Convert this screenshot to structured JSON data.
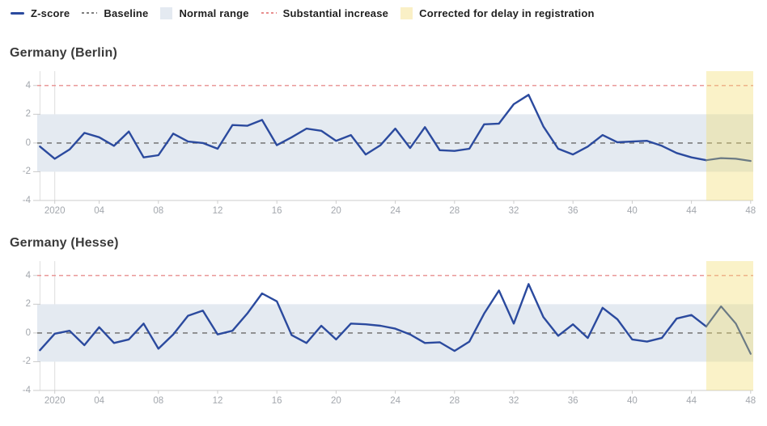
{
  "legend": {
    "items": [
      {
        "label": "Z-score",
        "marker": "solid-line",
        "color": "#2b4a9e"
      },
      {
        "label": "Baseline",
        "marker": "dashed-line",
        "color": "#7d7d7d"
      },
      {
        "label": "Normal range",
        "marker": "swatch",
        "color": "#e4eaf1"
      },
      {
        "label": "Substantial increase",
        "marker": "dashed-line",
        "color": "#e88f8f"
      },
      {
        "label": "Corrected for delay in registration",
        "marker": "swatch",
        "color": "#faf0c6"
      }
    ]
  },
  "chart_style": {
    "line": "#2b4a9e",
    "corrected_line": "#6b7a84",
    "baseline": "#7d7d7d",
    "substantial": "#e88f8f",
    "normal_fill": "#e4eaf1",
    "corrected_fill": "rgba(242,220,110,0.38)",
    "year_line": "#dedede",
    "axis": "#cccccc",
    "tick_label": "#a3a7ad"
  },
  "chart_data": [
    {
      "type": "line",
      "title": "Germany (Berlin)",
      "x_unit": "week number, 2020",
      "x_start_week": 0,
      "x_step": 1,
      "values": [
        -0.25,
        -1.1,
        -0.45,
        0.7,
        0.4,
        -0.2,
        0.8,
        -1.0,
        -0.85,
        0.65,
        0.1,
        0.0,
        -0.4,
        1.25,
        1.2,
        1.6,
        -0.15,
        0.4,
        1.0,
        0.85,
        0.15,
        0.55,
        -0.8,
        -0.15,
        1.0,
        -0.35,
        1.1,
        -0.5,
        -0.55,
        -0.4,
        1.3,
        1.35,
        2.7,
        3.35,
        1.15,
        -0.4,
        -0.8,
        -0.25,
        0.55,
        0.05,
        0.1,
        0.15,
        -0.2,
        -0.7,
        -1.0,
        -1.2,
        -1.05,
        -1.1,
        -1.25
      ],
      "baseline": 0,
      "substantial_increase_level": 4,
      "normal_range": [
        -2,
        2
      ],
      "corrected_from_week": 45,
      "year_boundary_weeks": [
        0,
        1
      ],
      "ylim": [
        -4,
        5
      ],
      "grid": false,
      "y_ticks": [
        {
          "value": 4,
          "label": "4"
        },
        {
          "value": 2,
          "label": "2"
        },
        {
          "value": 0,
          "label": "0"
        },
        {
          "value": -2,
          "label": "-2"
        },
        {
          "value": -4,
          "label": "-4"
        }
      ],
      "x_ticks": [
        {
          "week": 1,
          "label": "2020"
        },
        {
          "week": 4,
          "label": "04"
        },
        {
          "week": 8,
          "label": "08"
        },
        {
          "week": 12,
          "label": "12"
        },
        {
          "week": 16,
          "label": "16"
        },
        {
          "week": 20,
          "label": "20"
        },
        {
          "week": 24,
          "label": "24"
        },
        {
          "week": 28,
          "label": "28"
        },
        {
          "week": 32,
          "label": "32"
        },
        {
          "week": 36,
          "label": "36"
        },
        {
          "week": 40,
          "label": "40"
        },
        {
          "week": 44,
          "label": "44"
        },
        {
          "week": 48,
          "label": "48"
        }
      ]
    },
    {
      "type": "line",
      "title": "Germany (Hesse)",
      "x_unit": "week number, 2020",
      "x_start_week": 0,
      "x_step": 1,
      "values": [
        -1.2,
        -0.05,
        0.15,
        -0.85,
        0.4,
        -0.7,
        -0.45,
        0.65,
        -1.1,
        -0.1,
        1.2,
        1.55,
        -0.1,
        0.15,
        1.35,
        2.75,
        2.2,
        -0.15,
        -0.7,
        0.5,
        -0.45,
        0.65,
        0.6,
        0.5,
        0.3,
        -0.1,
        -0.7,
        -0.65,
        -1.25,
        -0.6,
        1.35,
        2.95,
        0.65,
        3.4,
        1.1,
        -0.2,
        0.6,
        -0.35,
        1.75,
        0.95,
        -0.45,
        -0.6,
        -0.35,
        1.0,
        1.25,
        0.45,
        1.85,
        0.65,
        -1.45
      ],
      "baseline": 0,
      "substantial_increase_level": 4,
      "normal_range": [
        -2,
        2
      ],
      "corrected_from_week": 45,
      "year_boundary_weeks": [
        0,
        1
      ],
      "ylim": [
        -4,
        5
      ],
      "grid": false,
      "y_ticks": [
        {
          "value": 4,
          "label": "4"
        },
        {
          "value": 2,
          "label": "2"
        },
        {
          "value": 0,
          "label": "0"
        },
        {
          "value": -2,
          "label": "-2"
        },
        {
          "value": -4,
          "label": "-4"
        }
      ],
      "x_ticks": [
        {
          "week": 1,
          "label": "2020"
        },
        {
          "week": 4,
          "label": "04"
        },
        {
          "week": 8,
          "label": "08"
        },
        {
          "week": 12,
          "label": "12"
        },
        {
          "week": 16,
          "label": "16"
        },
        {
          "week": 20,
          "label": "20"
        },
        {
          "week": 24,
          "label": "24"
        },
        {
          "week": 28,
          "label": "28"
        },
        {
          "week": 32,
          "label": "32"
        },
        {
          "week": 36,
          "label": "36"
        },
        {
          "week": 40,
          "label": "40"
        },
        {
          "week": 44,
          "label": "44"
        },
        {
          "week": 48,
          "label": "48"
        }
      ]
    }
  ]
}
